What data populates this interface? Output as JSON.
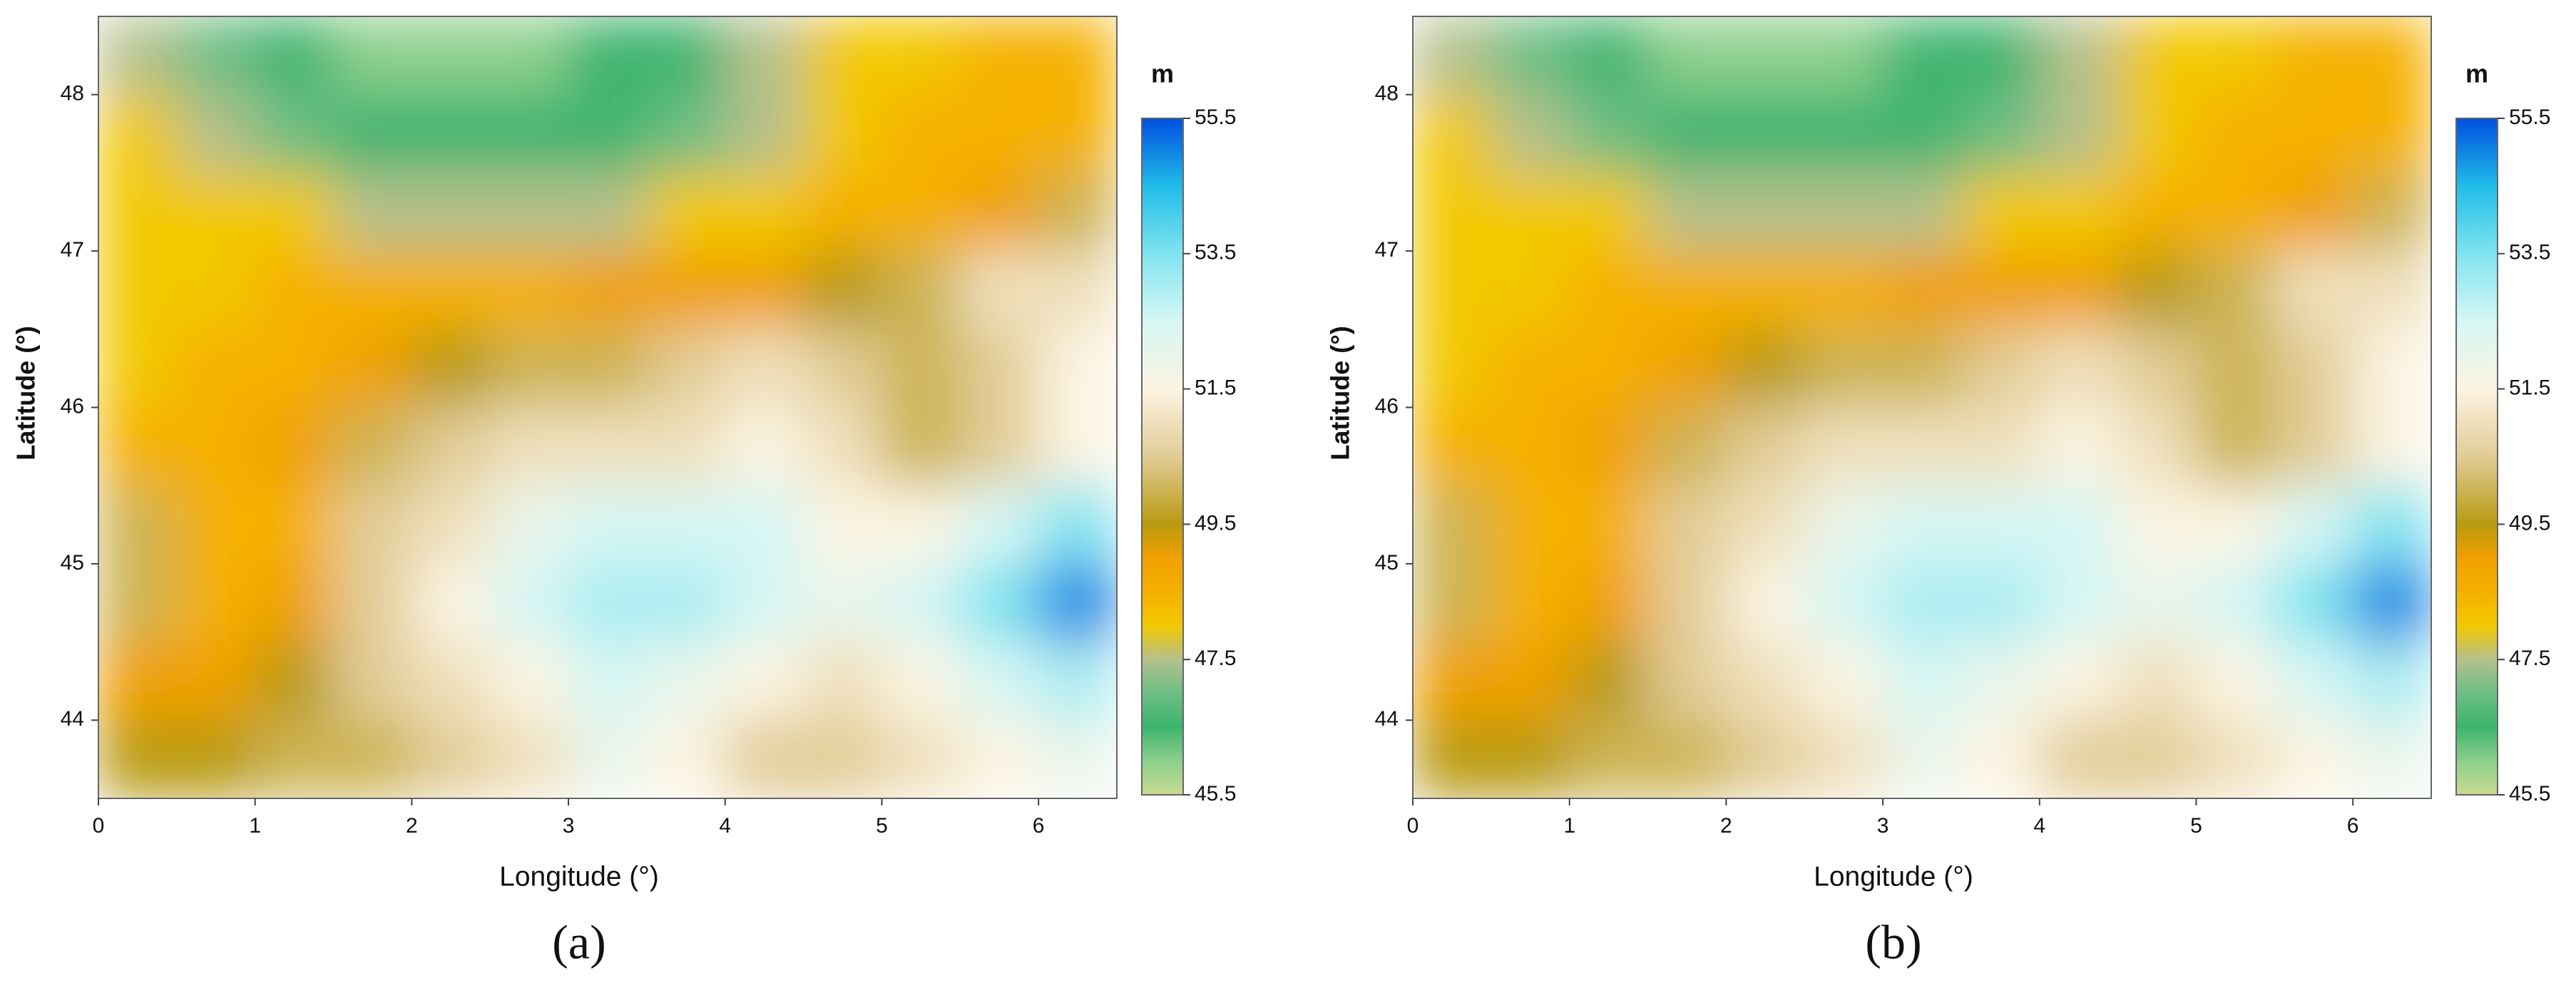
{
  "chart_data": [
    {
      "type": "heatmap",
      "panel_label": "(a)",
      "xlabel": "Longitude (°)",
      "ylabel": "Latitude (°)",
      "colorbar_title": "m",
      "xlim": [
        0,
        6.5
      ],
      "ylim": [
        43.5,
        48.5
      ],
      "xticks": [
        0,
        1,
        2,
        3,
        4,
        5,
        6
      ],
      "yticks": [
        44,
        45,
        46,
        47,
        48
      ],
      "clim": [
        45.5,
        55.5
      ],
      "cticks": [
        45.5,
        47.5,
        49.5,
        51.5,
        53.5,
        55.5
      ],
      "x": [
        0.25,
        0.75,
        1.25,
        1.75,
        2.25,
        2.75,
        3.25,
        3.75,
        4.25,
        4.75,
        5.25,
        5.75,
        6.25
      ],
      "y": [
        48.25,
        47.75,
        47.25,
        46.75,
        46.25,
        45.75,
        45.25,
        44.75,
        44.25,
        43.75
      ],
      "z": [
        [
          47.5,
          47,
          46.5,
          46,
          46,
          46,
          46.5,
          46.5,
          47.5,
          48,
          48,
          48.5,
          48.5
        ],
        [
          48,
          47.5,
          47,
          46.5,
          46.5,
          46.5,
          46.5,
          47,
          47.5,
          48,
          48.5,
          48.5,
          48.5
        ],
        [
          48,
          48,
          48,
          47.5,
          47.5,
          47.5,
          47.5,
          48,
          48,
          48.5,
          48.5,
          49,
          50
        ],
        [
          48,
          48,
          48.5,
          48.5,
          48.5,
          48.5,
          49,
          49,
          49,
          49.5,
          50,
          51,
          51
        ],
        [
          48,
          48.5,
          48.5,
          49,
          49.5,
          50,
          50,
          50.5,
          51,
          50.5,
          50,
          50.5,
          51.5
        ],
        [
          48.5,
          48.5,
          49,
          50,
          50.5,
          51,
          51,
          51,
          51.5,
          51,
          50,
          50.5,
          51.5
        ],
        [
          50,
          48.5,
          48.5,
          50.5,
          51,
          52,
          52.5,
          52.5,
          52.5,
          51.5,
          51.5,
          52.5,
          53.5
        ],
        [
          50,
          48.5,
          49,
          50.5,
          51.5,
          52.5,
          53,
          53,
          52.5,
          52,
          52.5,
          53.5,
          55
        ],
        [
          49,
          49,
          49.5,
          50.5,
          51,
          51.5,
          52.5,
          52,
          51.5,
          51,
          51.5,
          52.5,
          53
        ],
        [
          49.5,
          49.5,
          50,
          50,
          50.5,
          51,
          52,
          51.5,
          50.5,
          50.5,
          51,
          51.5,
          52
        ]
      ]
    },
    {
      "type": "heatmap",
      "panel_label": "(b)",
      "xlabel": "Longitude (°)",
      "ylabel": "Latitude (°)",
      "colorbar_title": "m",
      "xlim": [
        0,
        6.5
      ],
      "ylim": [
        43.5,
        48.5
      ],
      "xticks": [
        0,
        1,
        2,
        3,
        4,
        5,
        6
      ],
      "yticks": [
        44,
        45,
        46,
        47,
        48
      ],
      "clim": [
        45.5,
        55.5
      ],
      "cticks": [
        45.5,
        47.5,
        49.5,
        51.5,
        53.5,
        55.5
      ],
      "x": [
        0.25,
        0.75,
        1.25,
        1.75,
        2.25,
        2.75,
        3.25,
        3.75,
        4.25,
        4.75,
        5.25,
        5.75,
        6.25
      ],
      "y": [
        48.25,
        47.75,
        47.25,
        46.75,
        46.25,
        45.75,
        45.25,
        44.75,
        44.25,
        43.75
      ],
      "z": [
        [
          47.5,
          47,
          46.5,
          46,
          46,
          46,
          46.5,
          46.5,
          47.5,
          48,
          48,
          48.5,
          48.5
        ],
        [
          48,
          47.5,
          47,
          46.5,
          46.5,
          46.5,
          46.5,
          47,
          47.5,
          48,
          48.5,
          48.5,
          48.5
        ],
        [
          48,
          48,
          48,
          47.5,
          47.5,
          47.5,
          47.5,
          48,
          48,
          48.5,
          48.5,
          49,
          50
        ],
        [
          48,
          48,
          48.5,
          48.5,
          48.5,
          48.5,
          49,
          49,
          49,
          49.5,
          50,
          51,
          51
        ],
        [
          48,
          48.5,
          48.5,
          49,
          49.5,
          50,
          50,
          50.5,
          51,
          50.5,
          50,
          50.5,
          51.5
        ],
        [
          48.5,
          48.5,
          49,
          50,
          50.5,
          51,
          51,
          51,
          51.5,
          51,
          50,
          50.5,
          51.5
        ],
        [
          50,
          48.5,
          48.5,
          50.5,
          51,
          52,
          52.5,
          52.5,
          52.5,
          51.5,
          51.5,
          52.5,
          53.5
        ],
        [
          50,
          48.5,
          49,
          50.5,
          51.5,
          52.5,
          53,
          53,
          52.5,
          52,
          52.5,
          53.5,
          55
        ],
        [
          49,
          49,
          49.5,
          50.5,
          51,
          51.5,
          52.5,
          52,
          51.5,
          51,
          51.5,
          52.5,
          53
        ],
        [
          49.5,
          49.5,
          50,
          50,
          50.5,
          51,
          52,
          51.5,
          50.5,
          50.5,
          51,
          51.5,
          52
        ]
      ]
    }
  ]
}
